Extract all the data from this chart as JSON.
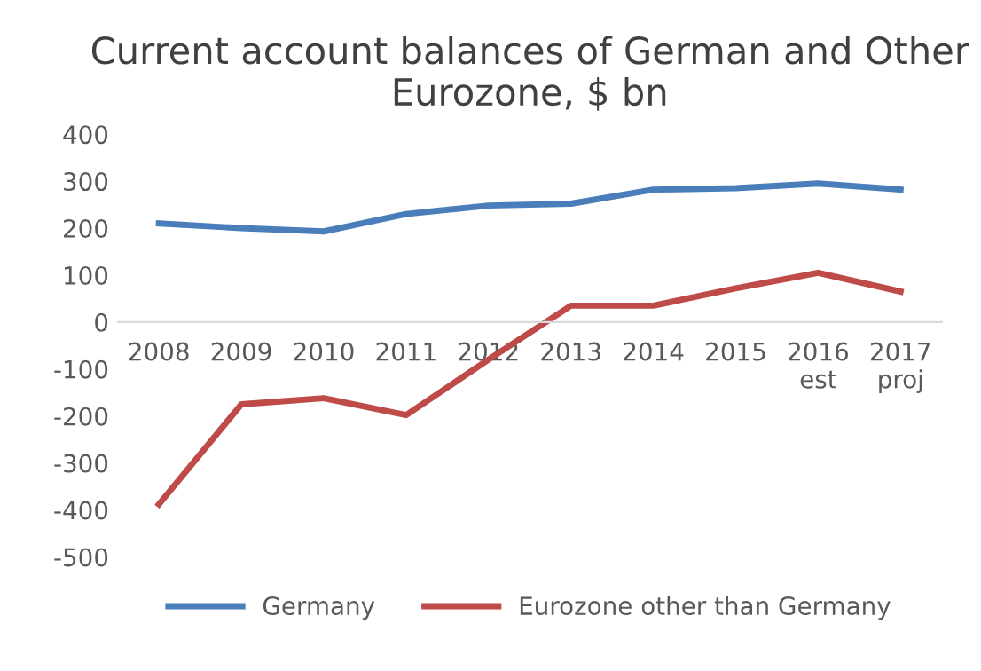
{
  "chart_data": {
    "type": "line",
    "title": "Current account balances of German and Other Eurozone, $ bn",
    "categories": [
      "2008",
      "2009",
      "2010",
      "2011",
      "2012",
      "2013",
      "2014",
      "2015",
      "2016\nest",
      "2017\nproj"
    ],
    "series": [
      {
        "name": "Germany",
        "color": "#4a7ebb",
        "values": [
          210,
          200,
          193,
          230,
          248,
          252,
          282,
          285,
          295,
          282
        ]
      },
      {
        "name": "Eurozone other than Germany",
        "color": "#be4b48",
        "values": [
          -388,
          -175,
          -162,
          -198,
          -80,
          35,
          35,
          72,
          105,
          65
        ]
      }
    ],
    "ylim": [
      -500,
      400
    ],
    "yticks": [
      {
        "value": -500,
        "label": "-500"
      },
      {
        "value": -400,
        "label": "-400"
      },
      {
        "value": -300,
        "label": "-300"
      },
      {
        "value": -200,
        "label": "-200"
      },
      {
        "value": -100,
        "label": "-100"
      },
      0,
      100,
      200,
      300,
      400
    ],
    "grid": false,
    "legend": "bottom",
    "marker": "none",
    "line_style": "solid"
  }
}
